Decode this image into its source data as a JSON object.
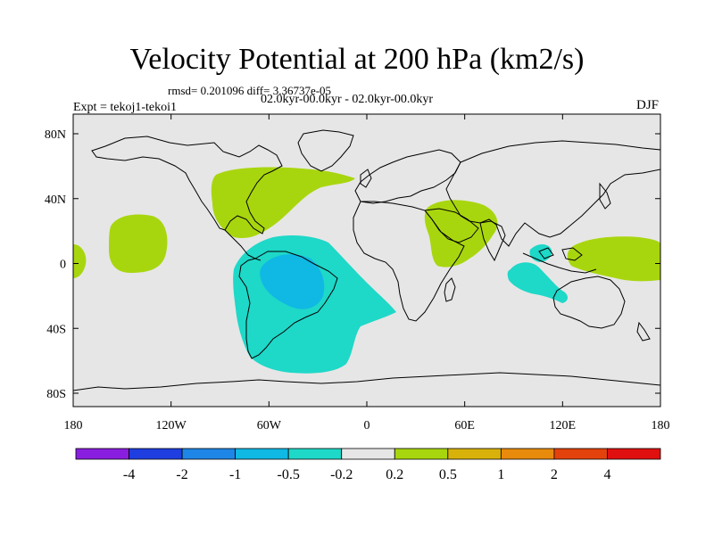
{
  "title": "Velocity Potential at 200 hPa (km2/s)",
  "stats": "rmsd= 0.201096 diff= 3.36737e-05",
  "expt": "Expt = tekoj1-tekoi1",
  "periods": "02.0kyr-00.0kyr - 02.0kyr-00.0kyr",
  "season": "DJF",
  "map": {
    "background_color": "#e6e6e6",
    "x_ticks": [
      "180",
      "120W",
      "60W",
      "0",
      "60E",
      "120E",
      "180"
    ],
    "y_ticks": [
      "80N",
      "40N",
      "0",
      "40S",
      "80S"
    ]
  },
  "colorbar": {
    "colors": [
      "#8a1ee0",
      "#1e3ee0",
      "#1e86e6",
      "#10b8e4",
      "#1ed8c8",
      "#e6e6e6",
      "#a8d60e",
      "#d8b20a",
      "#e88a0c",
      "#e4420c",
      "#e01010"
    ],
    "labels": [
      "-4",
      "-2",
      "-1",
      "-0.5",
      "-0.2",
      "0.2",
      "0.5",
      "1",
      "2",
      "4"
    ]
  },
  "regions": [
    {
      "name": "north-atlantic-positive",
      "level": "0.2 to 0.5",
      "color": "#a8d60e"
    },
    {
      "name": "central-pacific-positive",
      "level": "0.2 to 0.5",
      "color": "#a8d60e"
    },
    {
      "name": "east-pacific-positive",
      "level": "0.2 to 0.5",
      "color": "#a8d60e"
    },
    {
      "name": "africa-arabia-positive",
      "level": "0.2 to 0.5",
      "color": "#a8d60e"
    },
    {
      "name": "west-pacific-positive",
      "level": "0.2 to 0.5",
      "color": "#a8d60e"
    },
    {
      "name": "south-america-atlantic-negative",
      "level": "-0.5 to -0.2",
      "color": "#1ed8c8"
    },
    {
      "name": "amazon-negative",
      "level": "-1 to -0.5",
      "color": "#10b8e4"
    },
    {
      "name": "indian-ocean-negative",
      "level": "-0.5 to -0.2",
      "color": "#1ed8c8"
    }
  ]
}
